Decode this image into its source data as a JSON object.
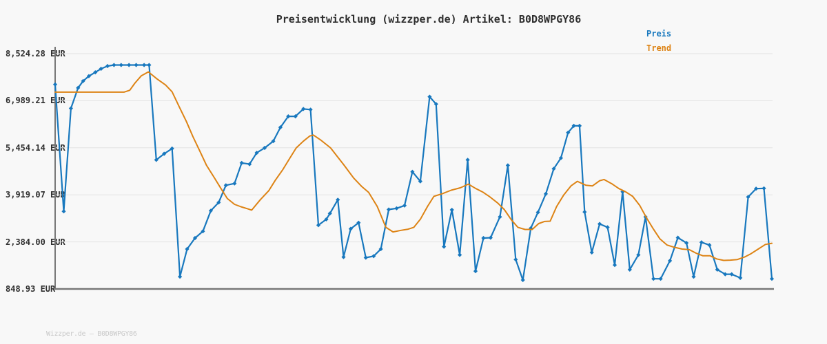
{
  "page": {
    "background": "#f8f8f8"
  },
  "header": {
    "title": "Preisentwicklung (wizzper.de) Artikel: B0D8WPGY86"
  },
  "legend": {
    "items": [
      {
        "label": "Preis",
        "color": "#1878be"
      },
      {
        "label": "Trend",
        "color": "#dd8314"
      }
    ]
  },
  "footer": {
    "text": "Wizzper.de — B0D8WPGY86"
  },
  "chart_data": {
    "type": "line",
    "title": "Preisentwicklung (wizzper.de) Artikel: B0D8WPGY86",
    "currency": "EUR",
    "xlabel": "",
    "ylabel": "",
    "x_axis": {
      "tick_labels_visible": false,
      "unit": "time"
    },
    "ylim": [
      848.93,
      8524.28
    ],
    "grid": "horizontal",
    "grid_color": "#e2e2e2",
    "axis_color": "#777777",
    "legend_position": "top-right",
    "y_ticks": [
      {
        "label": "8,524.28 EUR",
        "value": 8524.28
      },
      {
        "label": "6,989.21 EUR",
        "value": 6989.21
      },
      {
        "label": "5,454.14 EUR",
        "value": 5454.14
      },
      {
        "label": "3,919.07 EUR",
        "value": 3919.07
      },
      {
        "label": "2,384.00 EUR",
        "value": 2384.0
      },
      {
        "label": "848.93 EUR",
        "value": 848.93
      }
    ],
    "series": [
      {
        "name": "Preis",
        "color": "#1878be",
        "markers": true,
        "points": [
          [
            0.0,
            7520
          ],
          [
            1.2,
            3380
          ],
          [
            2.2,
            6740
          ],
          [
            3.2,
            7410
          ],
          [
            3.9,
            7630
          ],
          [
            4.7,
            7790
          ],
          [
            5.6,
            7915
          ],
          [
            6.4,
            8030
          ],
          [
            7.3,
            8120
          ],
          [
            8.2,
            8155
          ],
          [
            9.2,
            8155
          ],
          [
            10.3,
            8155
          ],
          [
            11.3,
            8155
          ],
          [
            12.4,
            8155
          ],
          [
            13.1,
            8155
          ],
          [
            14.1,
            5060
          ],
          [
            15.2,
            5260
          ],
          [
            16.3,
            5430
          ],
          [
            17.4,
            1250
          ],
          [
            18.4,
            2150
          ],
          [
            19.5,
            2510
          ],
          [
            20.6,
            2730
          ],
          [
            21.7,
            3400
          ],
          [
            22.8,
            3670
          ],
          [
            23.8,
            4230
          ],
          [
            25.0,
            4290
          ],
          [
            26.0,
            4960
          ],
          [
            27.1,
            4920
          ],
          [
            28.1,
            5290
          ],
          [
            29.2,
            5450
          ],
          [
            30.4,
            5670
          ],
          [
            31.4,
            6120
          ],
          [
            32.5,
            6480
          ],
          [
            33.5,
            6480
          ],
          [
            34.6,
            6720
          ],
          [
            35.6,
            6700
          ],
          [
            36.7,
            2930
          ],
          [
            37.8,
            3120
          ],
          [
            38.3,
            3310
          ],
          [
            39.4,
            3760
          ],
          [
            40.2,
            1890
          ],
          [
            41.2,
            2810
          ],
          [
            42.3,
            3010
          ],
          [
            43.3,
            1870
          ],
          [
            44.4,
            1920
          ],
          [
            45.4,
            2150
          ],
          [
            46.5,
            3440
          ],
          [
            47.6,
            3480
          ],
          [
            48.7,
            3570
          ],
          [
            49.8,
            4670
          ],
          [
            50.9,
            4360
          ],
          [
            52.2,
            7120
          ],
          [
            53.1,
            6880
          ],
          [
            54.2,
            2230
          ],
          [
            55.3,
            3430
          ],
          [
            56.4,
            1960
          ],
          [
            57.5,
            5060
          ],
          [
            58.6,
            1430
          ],
          [
            59.7,
            2510
          ],
          [
            60.7,
            2520
          ],
          [
            62.0,
            3200
          ],
          [
            63.1,
            4880
          ],
          [
            64.2,
            1810
          ],
          [
            65.2,
            1140
          ],
          [
            66.3,
            2830
          ],
          [
            67.3,
            3350
          ],
          [
            68.4,
            3950
          ],
          [
            69.5,
            4770
          ],
          [
            70.5,
            5120
          ],
          [
            71.5,
            5950
          ],
          [
            72.3,
            6170
          ],
          [
            73.1,
            6170
          ],
          [
            73.8,
            3360
          ],
          [
            74.8,
            2040
          ],
          [
            75.9,
            2970
          ],
          [
            77.0,
            2860
          ],
          [
            78.0,
            1630
          ],
          [
            79.1,
            4020
          ],
          [
            80.1,
            1480
          ],
          [
            81.3,
            1960
          ],
          [
            82.3,
            3200
          ],
          [
            83.4,
            1180
          ],
          [
            84.4,
            1180
          ],
          [
            85.7,
            1770
          ],
          [
            86.8,
            2520
          ],
          [
            88.0,
            2350
          ],
          [
            89.0,
            1250
          ],
          [
            90.1,
            2370
          ],
          [
            91.2,
            2280
          ],
          [
            92.3,
            1480
          ],
          [
            93.4,
            1330
          ],
          [
            94.3,
            1330
          ],
          [
            95.5,
            1210
          ],
          [
            96.6,
            3850
          ],
          [
            97.7,
            4120
          ],
          [
            98.8,
            4130
          ],
          [
            99.9,
            1180
          ]
        ]
      },
      {
        "name": "Trend",
        "color": "#dd8314",
        "markers": false,
        "points": [
          [
            0.0,
            7270
          ],
          [
            2.0,
            7270
          ],
          [
            4.0,
            7270
          ],
          [
            6.0,
            7270
          ],
          [
            8.0,
            7270
          ],
          [
            9.6,
            7270
          ],
          [
            10.4,
            7330
          ],
          [
            11.1,
            7560
          ],
          [
            12.0,
            7800
          ],
          [
            13.0,
            7930
          ],
          [
            14.2,
            7700
          ],
          [
            15.4,
            7500
          ],
          [
            16.3,
            7280
          ],
          [
            17.3,
            6790
          ],
          [
            18.3,
            6310
          ],
          [
            19.2,
            5820
          ],
          [
            20.2,
            5330
          ],
          [
            21.1,
            4880
          ],
          [
            22.1,
            4510
          ],
          [
            23.1,
            4130
          ],
          [
            24.0,
            3800
          ],
          [
            25.0,
            3610
          ],
          [
            25.9,
            3530
          ],
          [
            26.9,
            3460
          ],
          [
            27.4,
            3420
          ],
          [
            28.6,
            3760
          ],
          [
            29.8,
            4060
          ],
          [
            30.7,
            4400
          ],
          [
            31.7,
            4730
          ],
          [
            32.7,
            5110
          ],
          [
            33.6,
            5450
          ],
          [
            34.6,
            5670
          ],
          [
            35.5,
            5840
          ],
          [
            36.0,
            5870
          ],
          [
            37.0,
            5710
          ],
          [
            38.4,
            5450
          ],
          [
            40.3,
            4880
          ],
          [
            41.6,
            4470
          ],
          [
            42.7,
            4200
          ],
          [
            43.7,
            4000
          ],
          [
            44.9,
            3540
          ],
          [
            46.1,
            2860
          ],
          [
            47.1,
            2710
          ],
          [
            48.2,
            2760
          ],
          [
            49.2,
            2800
          ],
          [
            50.0,
            2860
          ],
          [
            50.9,
            3120
          ],
          [
            51.9,
            3540
          ],
          [
            52.8,
            3870
          ],
          [
            54.0,
            3960
          ],
          [
            55.2,
            4070
          ],
          [
            56.5,
            4150
          ],
          [
            57.6,
            4270
          ],
          [
            58.6,
            4130
          ],
          [
            59.6,
            4010
          ],
          [
            60.5,
            3870
          ],
          [
            61.7,
            3650
          ],
          [
            62.6,
            3440
          ],
          [
            63.6,
            3100
          ],
          [
            64.5,
            2860
          ],
          [
            65.5,
            2790
          ],
          [
            66.5,
            2790
          ],
          [
            67.4,
            2980
          ],
          [
            68.2,
            3050
          ],
          [
            69.0,
            3060
          ],
          [
            69.9,
            3540
          ],
          [
            70.9,
            3920
          ],
          [
            71.9,
            4210
          ],
          [
            72.8,
            4360
          ],
          [
            74.0,
            4230
          ],
          [
            74.9,
            4210
          ],
          [
            75.9,
            4380
          ],
          [
            76.5,
            4420
          ],
          [
            77.6,
            4280
          ],
          [
            78.6,
            4120
          ],
          [
            79.5,
            4020
          ],
          [
            80.5,
            3870
          ],
          [
            81.5,
            3570
          ],
          [
            82.4,
            3180
          ],
          [
            83.4,
            2800
          ],
          [
            84.3,
            2480
          ],
          [
            85.3,
            2280
          ],
          [
            86.3,
            2210
          ],
          [
            87.4,
            2150
          ],
          [
            88.4,
            2130
          ],
          [
            89.3,
            2020
          ],
          [
            90.3,
            1930
          ],
          [
            91.3,
            1930
          ],
          [
            92.2,
            1830
          ],
          [
            93.2,
            1780
          ],
          [
            94.1,
            1790
          ],
          [
            95.1,
            1810
          ],
          [
            96.1,
            1890
          ],
          [
            97.0,
            2000
          ],
          [
            98.0,
            2150
          ],
          [
            99.0,
            2300
          ],
          [
            99.9,
            2340
          ]
        ]
      }
    ]
  }
}
